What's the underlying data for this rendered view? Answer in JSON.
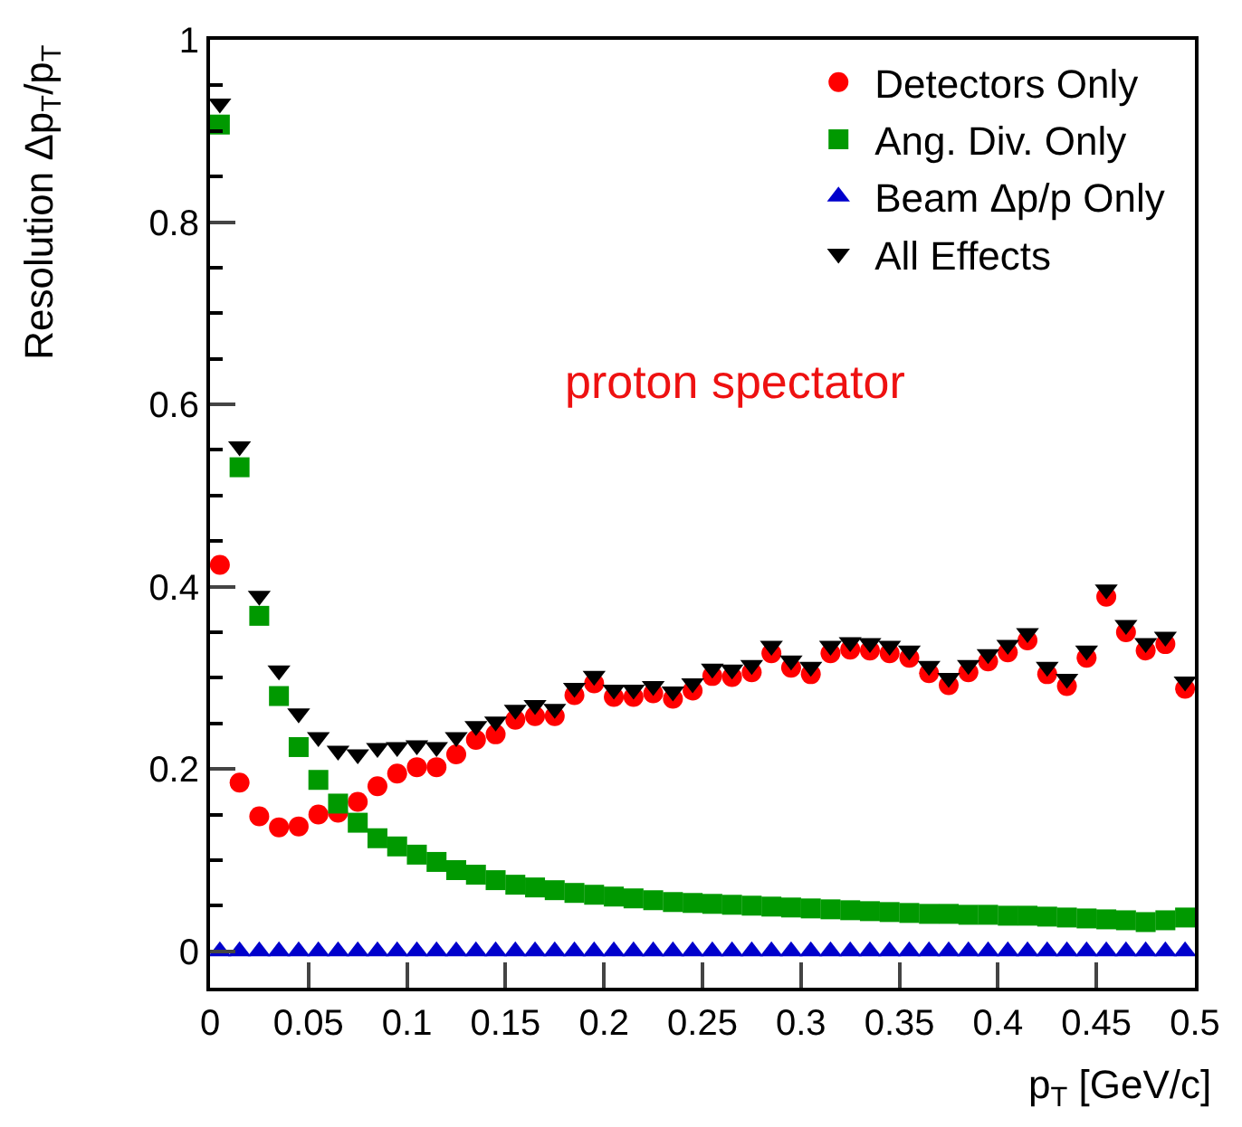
{
  "chart_data": {
    "type": "scatter",
    "xlabel": "p$_{T}$ [GeV/c]",
    "ylabel": "Resolution Δp$_{T}$/p$_{T}$",
    "x": [
      0.005,
      0.015,
      0.025,
      0.035,
      0.045,
      0.055,
      0.065,
      0.075,
      0.085,
      0.095,
      0.105,
      0.115,
      0.125,
      0.135,
      0.145,
      0.155,
      0.165,
      0.175,
      0.185,
      0.195,
      0.205,
      0.215,
      0.225,
      0.235,
      0.245,
      0.255,
      0.265,
      0.275,
      0.285,
      0.295,
      0.305,
      0.315,
      0.325,
      0.335,
      0.345,
      0.355,
      0.365,
      0.375,
      0.385,
      0.395,
      0.405,
      0.415,
      0.425,
      0.435,
      0.445,
      0.455,
      0.465,
      0.475,
      0.485,
      0.495
    ],
    "series": [
      {
        "name": "Detectors Only",
        "color": "#ff0000",
        "marker": "circle",
        "values": [
          0.424,
          0.185,
          0.148,
          0.136,
          0.137,
          0.15,
          0.152,
          0.164,
          0.181,
          0.195,
          0.202,
          0.202,
          0.216,
          0.232,
          0.238,
          0.254,
          0.258,
          0.258,
          0.281,
          0.294,
          0.279,
          0.279,
          0.283,
          0.277,
          0.286,
          0.302,
          0.301,
          0.306,
          0.327,
          0.311,
          0.304,
          0.327,
          0.331,
          0.33,
          0.327,
          0.322,
          0.305,
          0.292,
          0.306,
          0.318,
          0.328,
          0.341,
          0.304,
          0.291,
          0.322,
          0.389,
          0.35,
          0.33,
          0.337,
          0.288
        ]
      },
      {
        "name": "Ang. Div. Only",
        "color": "#009900",
        "marker": "square",
        "values": [
          0.907,
          0.531,
          0.368,
          0.28,
          0.224,
          0.188,
          0.162,
          0.141,
          0.124,
          0.115,
          0.106,
          0.098,
          0.089,
          0.084,
          0.078,
          0.073,
          0.07,
          0.067,
          0.064,
          0.062,
          0.06,
          0.058,
          0.056,
          0.054,
          0.053,
          0.052,
          0.051,
          0.05,
          0.049,
          0.048,
          0.047,
          0.046,
          0.045,
          0.044,
          0.043,
          0.042,
          0.041,
          0.041,
          0.04,
          0.04,
          0.039,
          0.039,
          0.038,
          0.037,
          0.036,
          0.035,
          0.034,
          0.032,
          0.034,
          0.037
        ]
      },
      {
        "name": "Beam Δp/p Only",
        "color": "#0000cc",
        "marker": "triangle",
        "values": [
          0,
          0,
          0,
          0,
          0,
          0,
          0,
          0,
          0,
          0,
          0,
          0,
          0,
          0,
          0,
          0,
          0,
          0,
          0,
          0,
          0,
          0,
          0,
          0,
          0,
          0,
          0,
          0,
          0,
          0,
          0,
          0,
          0,
          0,
          0,
          0,
          0,
          0,
          0,
          0,
          0,
          0,
          0,
          0,
          0,
          0,
          0,
          0,
          0,
          0
        ]
      },
      {
        "name": "All Effects",
        "color": "#000000",
        "marker": "triangle-down",
        "values": [
          0.93,
          0.554,
          0.39,
          0.308,
          0.261,
          0.235,
          0.22,
          0.216,
          0.223,
          0.224,
          0.226,
          0.224,
          0.235,
          0.247,
          0.252,
          0.265,
          0.27,
          0.266,
          0.289,
          0.302,
          0.287,
          0.287,
          0.291,
          0.285,
          0.294,
          0.31,
          0.309,
          0.314,
          0.335,
          0.319,
          0.312,
          0.335,
          0.339,
          0.338,
          0.335,
          0.33,
          0.313,
          0.3,
          0.314,
          0.326,
          0.336,
          0.349,
          0.312,
          0.299,
          0.33,
          0.397,
          0.358,
          0.338,
          0.345,
          0.296
        ]
      }
    ],
    "xlim": [
      0,
      0.5
    ],
    "xticks": [
      0,
      0.05,
      0.1,
      0.15,
      0.2,
      0.25,
      0.3,
      0.35,
      0.4,
      0.45,
      0.5
    ],
    "ylim": [
      -0.04,
      1
    ],
    "yticks": [
      0,
      0.2,
      0.4,
      0.6,
      0.8,
      1
    ],
    "legend": "top right",
    "annotations": [
      "proton spectator"
    ]
  }
}
